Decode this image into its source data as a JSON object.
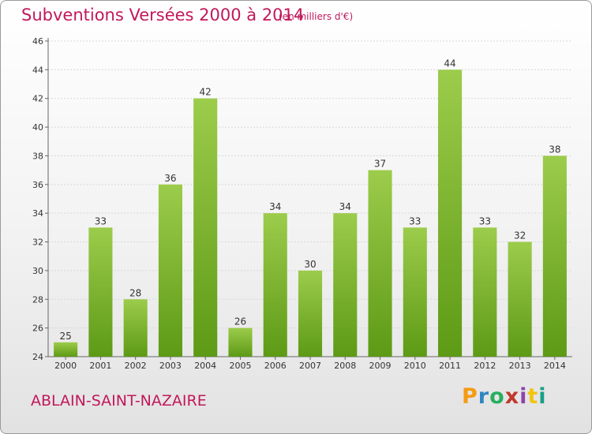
{
  "header": {
    "title": "Subventions Versées 2000 à 2014",
    "subtitle": "(en milliers d'€)"
  },
  "footer": {
    "commune": "ABLAIN-SAINT-NAZAIRE",
    "logo_letters": [
      "P",
      "r",
      "o",
      "x",
      "i",
      "t",
      "i"
    ],
    "logo_colors": [
      "#f39c12",
      "#2e86c1",
      "#27ae60",
      "#c0392b",
      "#8e44ad",
      "#f1c40f",
      "#16a085"
    ]
  },
  "colors": {
    "text_accent": "#c2185b",
    "bar_top": "#9ccc4b",
    "bar_bottom": "#5d9a15",
    "grid": "#d8d8d8"
  },
  "chart_data": {
    "type": "bar",
    "title": "Subventions Versées 2000 à 2014",
    "subtitle": "(en milliers d'€)",
    "categories": [
      "2000",
      "2001",
      "2002",
      "2003",
      "2004",
      "2005",
      "2006",
      "2007",
      "2008",
      "2009",
      "2010",
      "2011",
      "2012",
      "2013",
      "2014"
    ],
    "values": [
      25,
      33,
      28,
      36,
      42,
      26,
      34,
      30,
      34,
      37,
      33,
      44,
      33,
      32,
      38
    ],
    "ylim": [
      24,
      46
    ],
    "yticks": [
      24,
      26,
      28,
      30,
      32,
      34,
      36,
      38,
      40,
      42,
      44,
      46
    ],
    "grid": true,
    "data_labels": true
  }
}
